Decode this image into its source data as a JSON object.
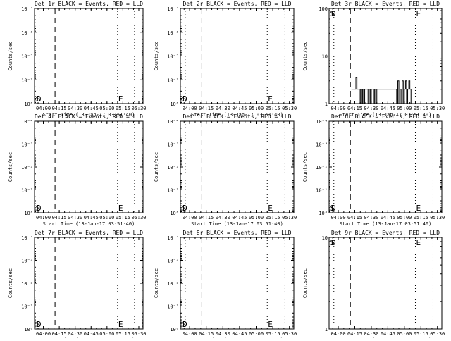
{
  "chart_data": [
    {
      "type": "line",
      "title": "Det 1r BLACK = Events, RED = LLD",
      "xlabel": "Start Time (13-Jan-17 03:51:40)",
      "ylabel": "Counts/sec",
      "yscale": "log",
      "x_ticks": [
        "04:00",
        "04:15",
        "04:30",
        "04:45",
        "05:00",
        "05:15",
        "05:30"
      ],
      "y_ticks": [
        "10⁰",
        "10⁻¹",
        "10⁻²",
        "10⁻³",
        "10⁻⁴"
      ],
      "y_tick_values": [
        1,
        0.1,
        0.01,
        0.001,
        0.0001
      ],
      "ylim": [
        1,
        0.0001
      ],
      "xlim": [
        "03:51:40",
        "05:34"
      ],
      "dotted_lines": [
        "03:56",
        "05:10",
        "05:26"
      ],
      "dashed_lines": [
        "04:11"
      ],
      "markers": [
        {
          "text": "S",
          "x": "03:52",
          "at": "bottom"
        },
        {
          "text": "D",
          "x": "03:53",
          "at": "bottom"
        },
        {
          "text": "E",
          "x": "05:10",
          "at": "bottom"
        }
      ],
      "series": [
        {
          "values": []
        }
      ]
    },
    {
      "type": "line",
      "title": "Det 2r BLACK = Events, RED = LLD",
      "xlabel": "Start Time (13-Jan-17 03:51:40)",
      "ylabel": "Counts/sec",
      "yscale": "log",
      "x_ticks": [
        "04:00",
        "04:15",
        "04:30",
        "04:45",
        "05:00",
        "05:15",
        "05:30"
      ],
      "y_ticks": [
        "10⁰",
        "10⁻¹",
        "10⁻²",
        "10⁻³",
        "10⁻⁴"
      ],
      "y_tick_values": [
        1,
        0.1,
        0.01,
        0.001,
        0.0001
      ],
      "ylim": [
        1,
        0.0001
      ],
      "xlim": [
        "03:51:40",
        "05:34"
      ],
      "dotted_lines": [
        "03:56",
        "05:10",
        "05:26"
      ],
      "dashed_lines": [
        "04:11"
      ],
      "markers": [
        {
          "text": "S",
          "x": "03:52",
          "at": "bottom"
        },
        {
          "text": "D",
          "x": "03:53",
          "at": "bottom"
        },
        {
          "text": "E",
          "x": "05:10",
          "at": "bottom"
        }
      ],
      "series": [
        {
          "values": []
        }
      ]
    },
    {
      "type": "line",
      "title": "Det 3r BLACK = Events, RED = LLD",
      "xlabel": "Start Time (13-Jan-17 03:51:40)",
      "ylabel": "Counts/sec",
      "yscale": "log",
      "x_ticks": [
        "04:00",
        "04:15",
        "04:30",
        "04:45",
        "05:00",
        "05:15",
        "05:30"
      ],
      "y_ticks": [
        "1",
        "10",
        "100"
      ],
      "y_tick_values": [
        1,
        10,
        100
      ],
      "ylim": [
        1,
        100
      ],
      "xlim": [
        "03:51:40",
        "05:34"
      ],
      "dotted_lines": [
        "03:56",
        "05:10",
        "05:26"
      ],
      "dashed_lines": [
        "04:11"
      ],
      "markers": [
        {
          "text": "S",
          "x": "03:52",
          "at": "top"
        },
        {
          "text": "D",
          "x": "03:53",
          "at": "top"
        },
        {
          "text": "E",
          "x": "05:10",
          "at": "top"
        }
      ],
      "series": [
        {
          "x": [
            "04:12",
            "04:13",
            "04:14",
            "04:15",
            "04:16",
            "04:17",
            "04:18",
            "04:19",
            "04:20",
            "04:21",
            "04:22",
            "04:23",
            "04:24",
            "04:25",
            "04:26",
            "04:27",
            "04:28",
            "04:29",
            "04:30",
            "04:31",
            "04:32",
            "04:33",
            "04:34",
            "04:35",
            "04:36",
            "04:37",
            "04:38",
            "04:39",
            "04:40",
            "04:41",
            "04:42",
            "04:43",
            "04:44",
            "04:45",
            "04:46",
            "04:47",
            "04:48",
            "04:49",
            "04:50",
            "04:51",
            "04:52",
            "04:53",
            "04:54",
            "04:55",
            "04:56",
            "04:57",
            "04:58",
            "04:59",
            "05:00",
            "05:01",
            "05:02",
            "05:03",
            "05:04",
            "05:05",
            "05:06"
          ],
          "values": [
            2,
            2,
            2,
            2,
            3.5,
            2,
            2,
            1,
            2,
            1,
            2,
            1,
            2,
            2,
            2,
            1,
            2,
            1,
            2,
            2,
            1,
            2,
            1,
            2,
            2,
            2,
            2,
            2,
            2,
            2,
            2,
            2,
            2,
            2,
            2,
            2,
            2,
            2,
            2,
            2,
            2,
            1,
            3,
            1,
            2,
            1,
            3,
            1,
            2,
            3,
            1,
            2,
            3,
            2,
            1
          ]
        }
      ]
    },
    {
      "type": "line",
      "title": "Det 4r BLACK = Events, RED = LLD",
      "xlabel": "Start Time (13-Jan-17 03:51:40)",
      "ylabel": "Counts/sec",
      "yscale": "log",
      "x_ticks": [
        "04:00",
        "04:15",
        "04:30",
        "04:45",
        "05:00",
        "05:15",
        "05:30"
      ],
      "y_ticks": [
        "10⁰",
        "10⁻¹",
        "10⁻²",
        "10⁻³",
        "10⁻⁴"
      ],
      "y_tick_values": [
        1,
        0.1,
        0.01,
        0.001,
        0.0001
      ],
      "ylim": [
        1,
        0.0001
      ],
      "xlim": [
        "03:51:40",
        "05:34"
      ],
      "dotted_lines": [
        "03:56",
        "05:10",
        "05:26"
      ],
      "dashed_lines": [
        "04:11"
      ],
      "markers": [
        {
          "text": "S",
          "x": "03:52",
          "at": "bottom"
        },
        {
          "text": "D",
          "x": "03:53",
          "at": "bottom"
        },
        {
          "text": "E",
          "x": "05:10",
          "at": "bottom"
        }
      ],
      "series": [
        {
          "values": []
        }
      ]
    },
    {
      "type": "line",
      "title": "Det 5r BLACK = Events, RED = LLD",
      "xlabel": "Start Time (13-Jan-17 03:51:40)",
      "ylabel": "Counts/sec",
      "yscale": "log",
      "x_ticks": [
        "04:00",
        "04:15",
        "04:30",
        "04:45",
        "05:00",
        "05:15",
        "05:30"
      ],
      "y_ticks": [
        "10⁰",
        "10⁻¹",
        "10⁻²",
        "10⁻³",
        "10⁻⁴"
      ],
      "y_tick_values": [
        1,
        0.1,
        0.01,
        0.001,
        0.0001
      ],
      "ylim": [
        1,
        0.0001
      ],
      "xlim": [
        "03:51:40",
        "05:34"
      ],
      "dotted_lines": [
        "03:56",
        "05:10",
        "05:26"
      ],
      "dashed_lines": [
        "04:11"
      ],
      "markers": [
        {
          "text": "S",
          "x": "03:52",
          "at": "bottom"
        },
        {
          "text": "D",
          "x": "03:53",
          "at": "bottom"
        },
        {
          "text": "E",
          "x": "05:10",
          "at": "bottom"
        }
      ],
      "series": [
        {
          "values": []
        }
      ]
    },
    {
      "type": "line",
      "title": "Det 6r BLACK = Events, RED = LLD",
      "xlabel": "Start Time (13-Jan-17 03:51:40)",
      "ylabel": "Counts/sec",
      "yscale": "log",
      "x_ticks": [
        "04:00",
        "04:15",
        "04:30",
        "04:45",
        "05:00",
        "05:15",
        "05:30"
      ],
      "y_ticks": [
        "10⁰",
        "10⁻¹",
        "10⁻²",
        "10⁻³",
        "10⁻⁴"
      ],
      "y_tick_values": [
        1,
        0.1,
        0.01,
        0.001,
        0.0001
      ],
      "ylim": [
        1,
        0.0001
      ],
      "xlim": [
        "03:51:40",
        "05:34"
      ],
      "dotted_lines": [
        "03:56",
        "05:10",
        "05:26"
      ],
      "dashed_lines": [
        "04:11"
      ],
      "markers": [
        {
          "text": "S",
          "x": "03:52",
          "at": "bottom"
        },
        {
          "text": "D",
          "x": "03:53",
          "at": "bottom"
        },
        {
          "text": "E",
          "x": "05:10",
          "at": "bottom"
        }
      ],
      "series": [
        {
          "values": []
        }
      ]
    },
    {
      "type": "line",
      "title": "Det 7r BLACK = Events, RED = LLD",
      "xlabel": "Start Time (13-Jan-17 03:51:40)",
      "ylabel": "Counts/sec",
      "yscale": "log",
      "x_ticks": [
        "04:00",
        "04:15",
        "04:30",
        "04:45",
        "05:00",
        "05:15",
        "05:30"
      ],
      "y_ticks": [
        "10⁰",
        "10⁻¹",
        "10⁻²",
        "10⁻³",
        "10⁻⁴"
      ],
      "y_tick_values": [
        1,
        0.1,
        0.01,
        0.001,
        0.0001
      ],
      "ylim": [
        1,
        0.0001
      ],
      "xlim": [
        "03:51:40",
        "05:34"
      ],
      "dotted_lines": [
        "03:56",
        "05:10",
        "05:26"
      ],
      "dashed_lines": [
        "04:11"
      ],
      "markers": [
        {
          "text": "S",
          "x": "03:52",
          "at": "bottom"
        },
        {
          "text": "D",
          "x": "03:53",
          "at": "bottom"
        },
        {
          "text": "E",
          "x": "05:10",
          "at": "bottom"
        }
      ],
      "series": [
        {
          "values": []
        }
      ]
    },
    {
      "type": "line",
      "title": "Det 8r BLACK = Events, RED = LLD",
      "xlabel": "Start Time (13-Jan-17 03:51:40)",
      "ylabel": "Counts/sec",
      "yscale": "log",
      "x_ticks": [
        "04:00",
        "04:15",
        "04:30",
        "04:45",
        "05:00",
        "05:15",
        "05:30"
      ],
      "y_ticks": [
        "10⁰",
        "10⁻¹",
        "10⁻²",
        "10⁻³",
        "10⁻⁴"
      ],
      "y_tick_values": [
        1,
        0.1,
        0.01,
        0.001,
        0.0001
      ],
      "ylim": [
        1,
        0.0001
      ],
      "xlim": [
        "03:51:40",
        "05:34"
      ],
      "dotted_lines": [
        "03:56",
        "05:10",
        "05:26"
      ],
      "dashed_lines": [
        "04:11"
      ],
      "markers": [
        {
          "text": "S",
          "x": "03:52",
          "at": "bottom"
        },
        {
          "text": "D",
          "x": "03:53",
          "at": "bottom"
        },
        {
          "text": "E",
          "x": "05:10",
          "at": "bottom"
        }
      ],
      "series": [
        {
          "values": []
        }
      ]
    },
    {
      "type": "line",
      "title": "Det 9r BLACK = Events, RED = LLD",
      "xlabel": "Start Time (13-Jan-17 03:51:40)",
      "ylabel": "Counts/sec",
      "yscale": "log",
      "x_ticks": [
        "04:00",
        "04:15",
        "04:30",
        "04:45",
        "05:00",
        "05:15",
        "05:30"
      ],
      "y_ticks": [
        "1",
        "10"
      ],
      "y_tick_values": [
        1,
        10
      ],
      "ylim": [
        1,
        10
      ],
      "xlim": [
        "03:51:40",
        "05:34"
      ],
      "dotted_lines": [
        "03:56",
        "05:10",
        "05:26"
      ],
      "dashed_lines": [
        "04:11"
      ],
      "markers": [
        {
          "text": "S",
          "x": "03:52",
          "at": "top"
        },
        {
          "text": "D",
          "x": "03:53",
          "at": "top"
        },
        {
          "text": "E",
          "x": "05:10",
          "at": "top"
        }
      ],
      "series": [
        {
          "values": []
        }
      ]
    }
  ]
}
